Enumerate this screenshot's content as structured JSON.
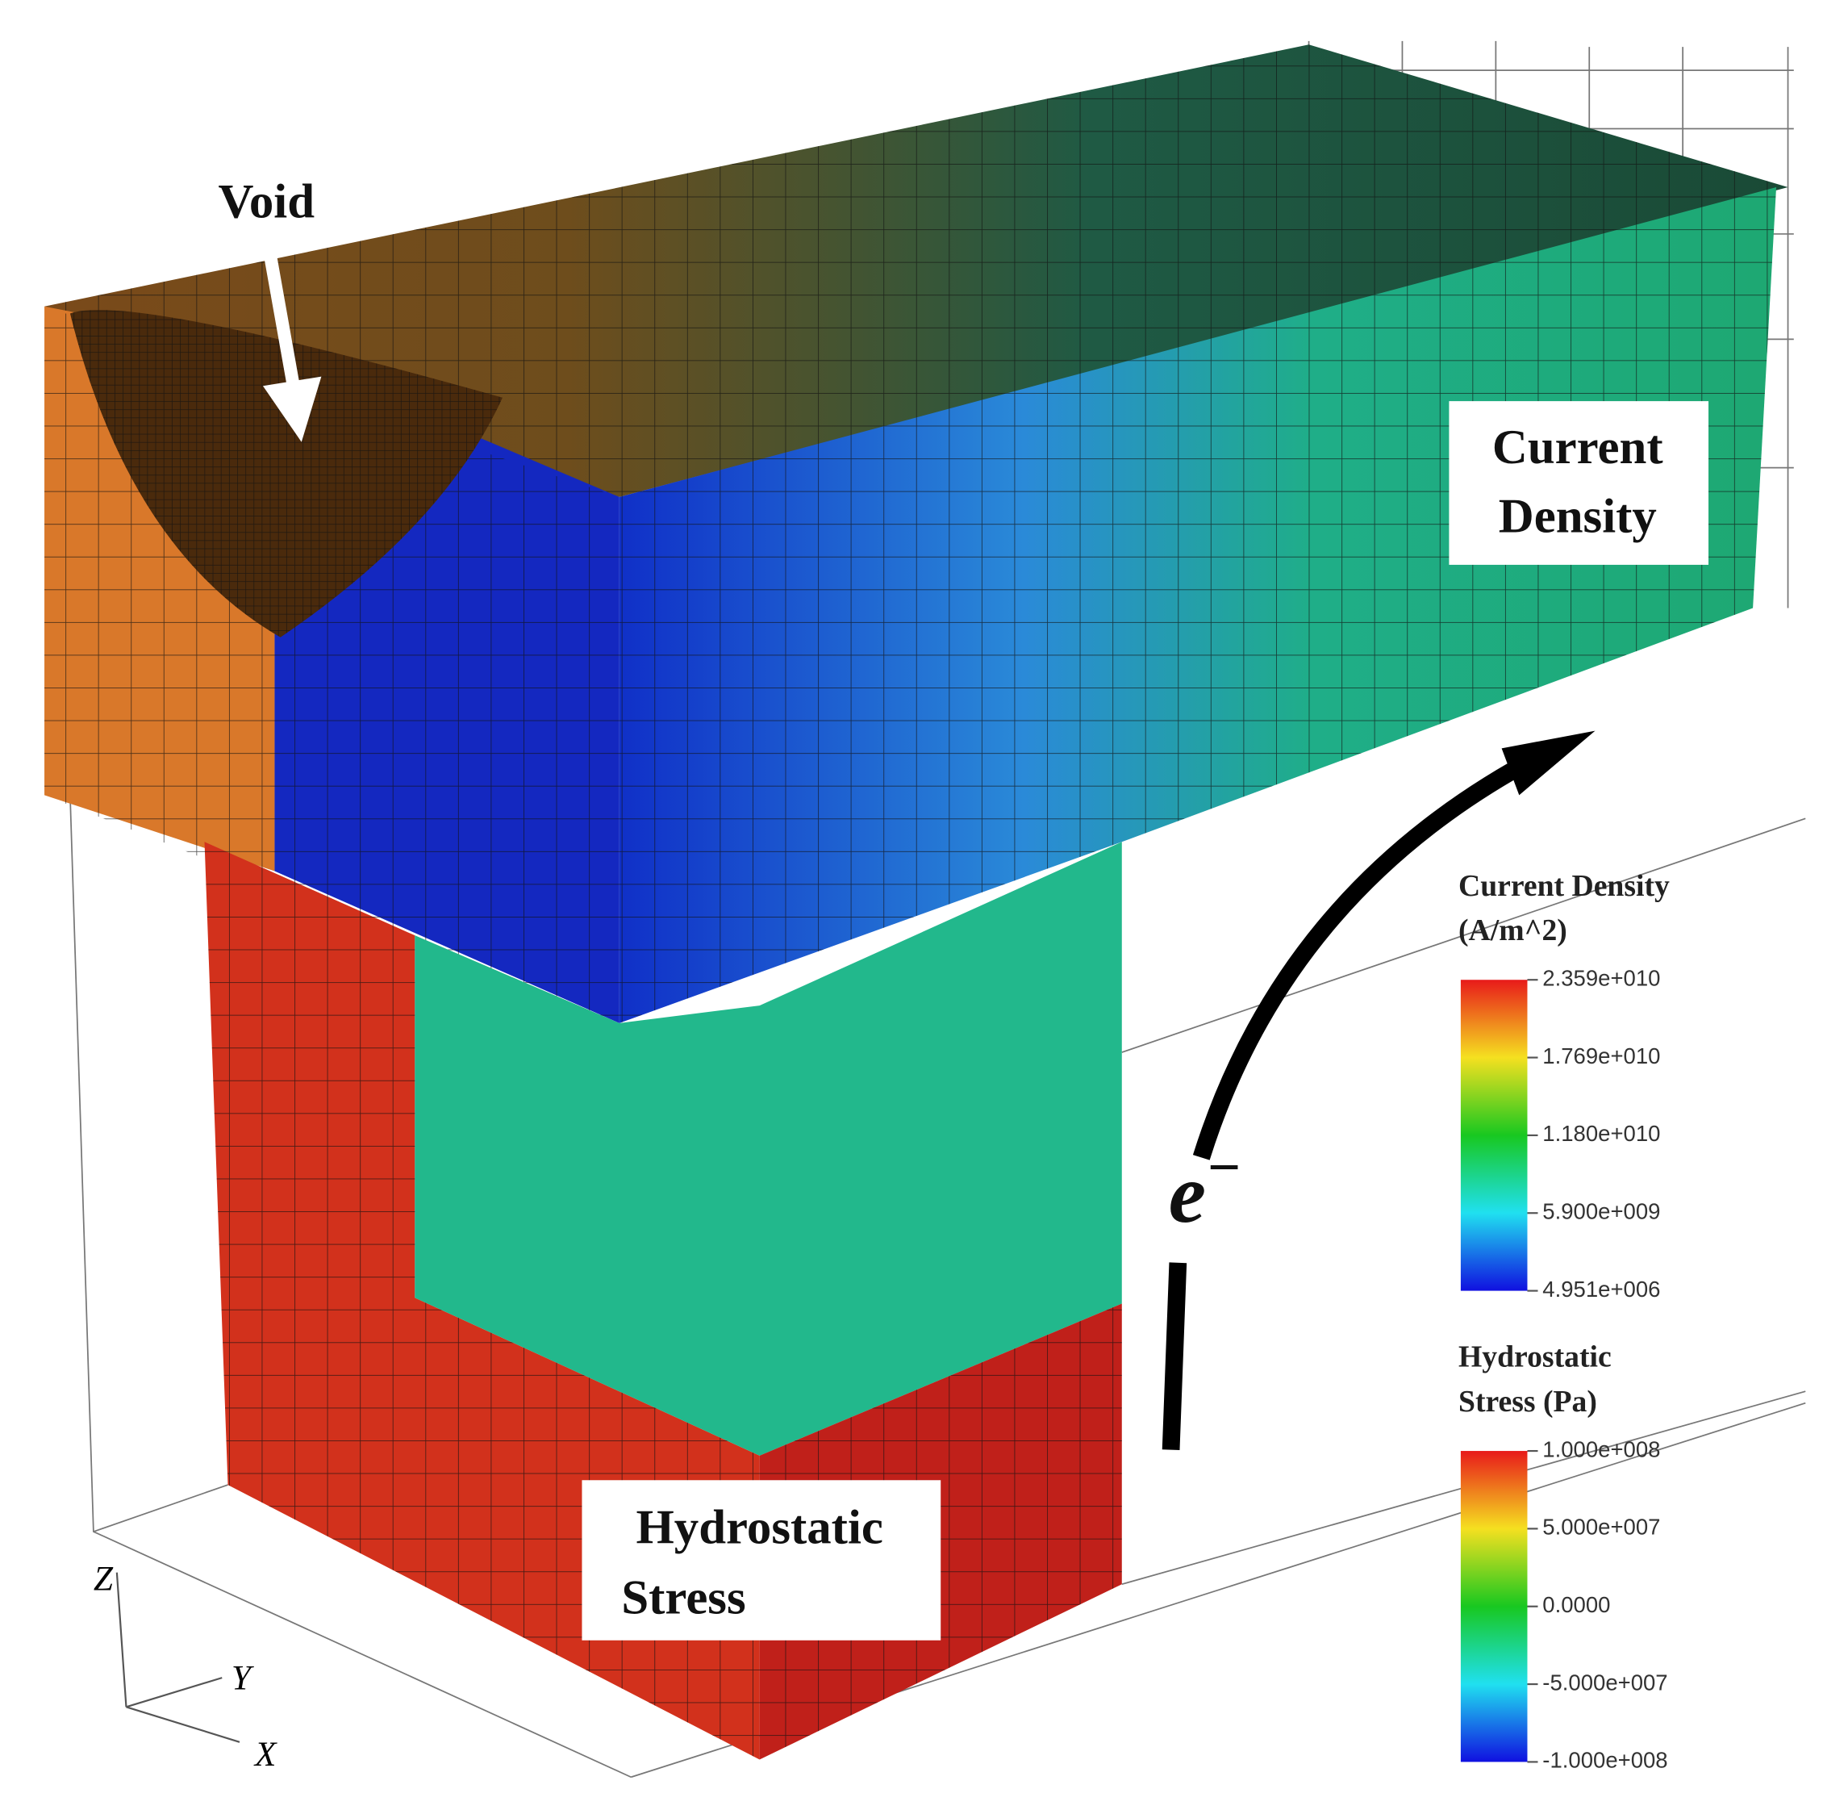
{
  "annotations": {
    "void": "Void",
    "current_density": [
      "Current",
      "Density"
    ],
    "hydrostatic_stress": [
      "Hydrostatic",
      "Stress"
    ],
    "electron": "e",
    "electron_sup": "−"
  },
  "axes": {
    "z": "Z",
    "y": "Y",
    "x": "X"
  },
  "legends": [
    {
      "title": [
        "Current Density",
        "(A/m^2)"
      ],
      "ticks": [
        "2.359e+010",
        "1.769e+010",
        "1.180e+010",
        "5.900e+009",
        "4.951e+006"
      ]
    },
    {
      "title": [
        "Hydrostatic",
        "Stress (Pa)"
      ],
      "ticks": [
        "1.000e+008",
        "5.000e+007",
        "0.0000",
        "-5.000e+007",
        "-1.000e+008"
      ]
    }
  ]
}
